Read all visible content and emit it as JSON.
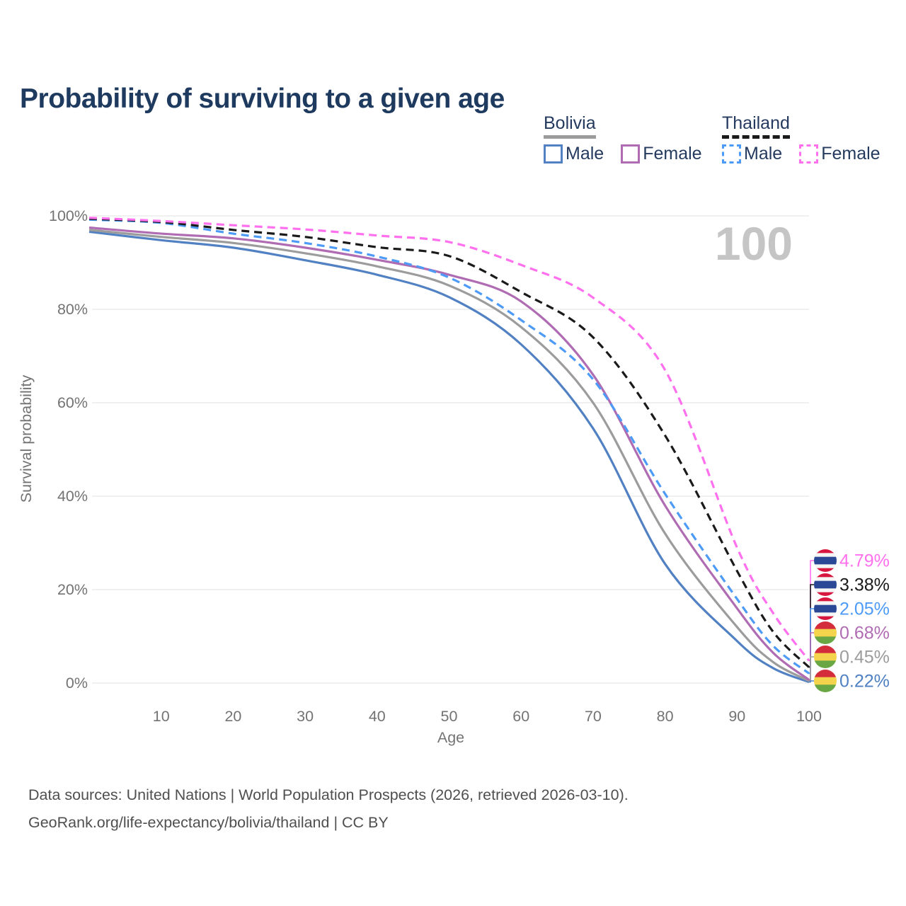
{
  "title": "Probability of surviving to a given age",
  "watermark": "100",
  "legend": {
    "groups": [
      {
        "country": "Bolivia",
        "line_style": "solid",
        "underline_color": "#9C9C9C",
        "items": [
          {
            "label": "Male",
            "color": "#5181C2",
            "dashed": false
          },
          {
            "label": "Female",
            "color": "#B06CB3",
            "dashed": false
          }
        ]
      },
      {
        "country": "Thailand",
        "line_style": "dashed",
        "underline_color": "#1A1A1A",
        "items": [
          {
            "label": "Male",
            "color": "#4D9BF7",
            "dashed": true
          },
          {
            "label": "Female",
            "color": "#FF70EE",
            "dashed": true
          }
        ]
      }
    ]
  },
  "chart_data": {
    "type": "line",
    "title": "Probability of surviving to a given age",
    "xlabel": "Age",
    "ylabel": "Survival probability",
    "x": [
      0,
      10,
      20,
      30,
      40,
      50,
      60,
      70,
      80,
      90,
      95,
      100
    ],
    "xticks": [
      10,
      20,
      30,
      40,
      50,
      60,
      70,
      80,
      90,
      100
    ],
    "yticks": [
      0,
      20,
      40,
      60,
      80,
      100
    ],
    "ytick_suffix": "%",
    "xlim": [
      0,
      100
    ],
    "ylim": [
      0,
      100
    ],
    "grid": "horizontal",
    "legend_position": "top-right",
    "watermark_age": "100",
    "series": [
      {
        "name": "Bolivia Male",
        "country": "bolivia",
        "sex": "male",
        "color": "#5181C2",
        "dashed": false,
        "values": [
          96.6,
          94.8,
          93.2,
          90.5,
          87.4,
          82.6,
          72.5,
          54.5,
          25.5,
          9.0,
          3.2,
          0.22
        ],
        "end_label": "0.22%"
      },
      {
        "name": "Bolivia Both sexes",
        "country": "bolivia",
        "sex": "total",
        "color": "#9C9C9C",
        "dashed": false,
        "values": [
          97.0,
          95.5,
          94.2,
          92.0,
          89.2,
          85.1,
          76.2,
          60.0,
          32.0,
          12.0,
          4.5,
          0.45
        ],
        "end_label": "0.45%"
      },
      {
        "name": "Bolivia Female",
        "country": "bolivia",
        "sex": "female",
        "color": "#B06CB3",
        "dashed": false,
        "values": [
          97.5,
          96.2,
          95.2,
          93.2,
          90.6,
          87.4,
          81.7,
          66.0,
          38.0,
          16.0,
          6.5,
          0.68
        ],
        "end_label": "0.68%"
      },
      {
        "name": "Thailand Male",
        "country": "thailand",
        "sex": "male",
        "color": "#4D9BF7",
        "dashed": true,
        "values": [
          99.2,
          98.5,
          96.2,
          94.2,
          91.3,
          86.8,
          77.7,
          65.0,
          40.5,
          18.0,
          8.0,
          2.05
        ],
        "end_label": "2.05%"
      },
      {
        "name": "Thailand Both sexes",
        "country": "thailand",
        "sex": "total",
        "color": "#1A1A1A",
        "dashed": true,
        "values": [
          99.4,
          98.7,
          97.0,
          95.5,
          93.3,
          91.4,
          83.7,
          74.0,
          53.0,
          24.0,
          11.0,
          3.38
        ],
        "end_label": "3.38%"
      },
      {
        "name": "Thailand Female",
        "country": "thailand",
        "sex": "female",
        "color": "#FF70EE",
        "dashed": true,
        "values": [
          99.6,
          98.9,
          98.0,
          97.1,
          95.8,
          94.4,
          89.5,
          82.5,
          67.0,
          29.0,
          15.0,
          4.79
        ],
        "end_label": "4.79%"
      }
    ],
    "flags": {
      "thailand": [
        {
          "color": "#D7173F",
          "h": 1
        },
        {
          "color": "#F5F5F5",
          "h": 1
        },
        {
          "color": "#2B4896",
          "h": 2
        },
        {
          "color": "#F5F5F5",
          "h": 1
        },
        {
          "color": "#D7173F",
          "h": 1
        }
      ],
      "bolivia": [
        {
          "color": "#D32D3C",
          "h": 1
        },
        {
          "color": "#F4D44D",
          "h": 1
        },
        {
          "color": "#69A744",
          "h": 1
        }
      ]
    }
  },
  "footer": {
    "line1": "Data sources: United Nations | World Population Prospects (2026, retrieved 2026-03-10).",
    "line2": "GeoRank.org/life-expectancy/bolivia/thailand | CC BY"
  }
}
